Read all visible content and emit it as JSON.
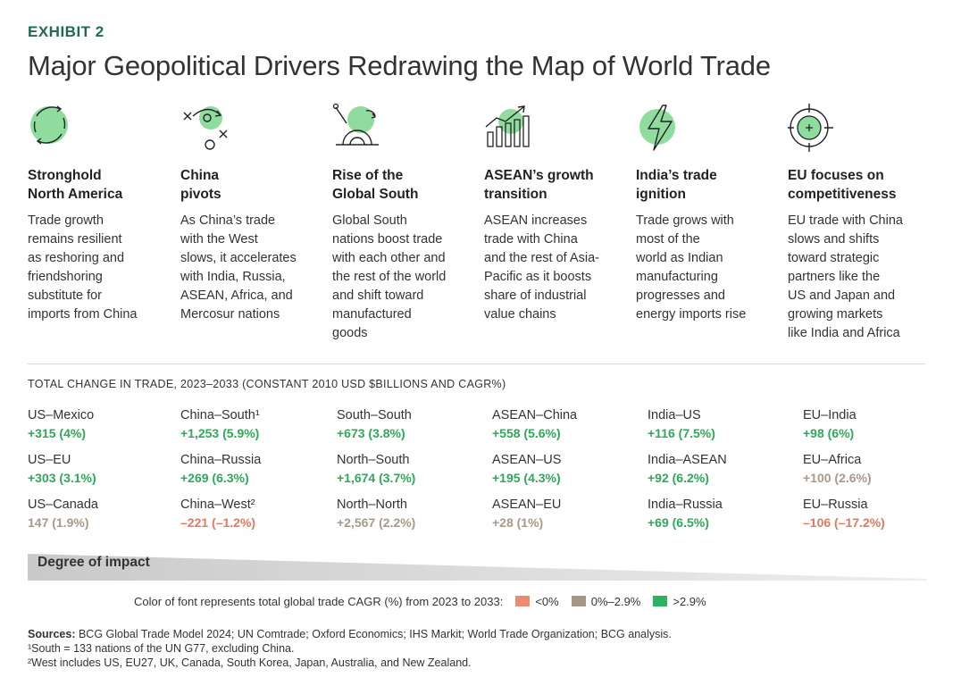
{
  "header": {
    "exhibit": "EXHIBIT 2",
    "title": "Major Geopolitical Drivers Redrawing the Map of World Trade"
  },
  "drivers": [
    {
      "icon": "cycle-circle-icon",
      "heading": "Stronghold\nNorth America",
      "description": "Trade growth\nremains resilient\nas reshoring and\nfriendshoring\nsubstitute for\nimports from China"
    },
    {
      "icon": "strategy-play-icon",
      "heading": "China\npivots",
      "description": "As China’s trade\nwith the West\nslows, it accelerates\nwith India, Russia,\nASEAN, Africa, and\nMercosur nations"
    },
    {
      "icon": "rising-sun-icon",
      "heading": "Rise of the\nGlobal South",
      "description": "Global South\nnations boost trade\nwith each other and\nthe rest of the world\nand shift toward\nmanufactured\ngoods"
    },
    {
      "icon": "growth-chart-icon",
      "heading": "ASEAN’s growth\ntransition",
      "description": "ASEAN increases\ntrade with China\nand the rest of Asia-\nPacific as it boosts\nshare of industrial\nvalue chains"
    },
    {
      "icon": "lightning-icon",
      "heading": "India’s trade\nignition",
      "description": "Trade grows with\nmost of the\nworld as Indian\nmanufacturing\nprogresses and\nenergy imports rise"
    },
    {
      "icon": "target-icon",
      "heading": "EU focuses on\ncompetitiveness",
      "description": "EU trade with China\nslows and shifts\ntoward strategic\npartners like the\nUS and Japan and\ngrowing markets\nlike India and Africa"
    }
  ],
  "colors": {
    "negative": "#e07a5f",
    "moderate": "#a8998a",
    "high": "#2ea95a",
    "swatch_negative": "#ef8a72",
    "swatch_moderate": "#a59687",
    "swatch_high": "#2bb35f",
    "icon_fill": "#8fdc9e"
  },
  "chart_data": {
    "type": "table",
    "title": "TOTAL CHANGE IN TRADE, 2023–2033 (CONSTANT 2010 USD $BILLIONS AND CAGR%)",
    "columns": [
      [
        {
          "pair": "US–Mexico",
          "value": "+315 (4%)",
          "change": 315,
          "cagr": 4,
          "category": "high"
        },
        {
          "pair": "US–EU",
          "value": "+303 (3.1%)",
          "change": 303,
          "cagr": 3.1,
          "category": "high"
        },
        {
          "pair": "US–Canada",
          "value": "147 (1.9%)",
          "change": 147,
          "cagr": 1.9,
          "category": "moderate"
        }
      ],
      [
        {
          "pair": "China–South¹",
          "value": "+1,253 (5.9%)",
          "change": 1253,
          "cagr": 5.9,
          "category": "high"
        },
        {
          "pair": "China–Russia",
          "value": "+269 (6.3%)",
          "change": 269,
          "cagr": 6.3,
          "category": "high"
        },
        {
          "pair": "China–West²",
          "value": "–221 (–1.2%)",
          "change": -221,
          "cagr": -1.2,
          "category": "negative"
        }
      ],
      [
        {
          "pair": "South–South",
          "value": "+673 (3.8%)",
          "change": 673,
          "cagr": 3.8,
          "category": "high"
        },
        {
          "pair": "North–South",
          "value": "+1,674 (3.7%)",
          "change": 1674,
          "cagr": 3.7,
          "category": "high"
        },
        {
          "pair": "North–North",
          "value": "+2,567 (2.2%)",
          "change": 2567,
          "cagr": 2.2,
          "category": "moderate"
        }
      ],
      [
        {
          "pair": "ASEAN–China",
          "value": "+558 (5.6%)",
          "change": 558,
          "cagr": 5.6,
          "category": "high"
        },
        {
          "pair": "ASEAN–US",
          "value": "+195 (4.3%)",
          "change": 195,
          "cagr": 4.3,
          "category": "high"
        },
        {
          "pair": "ASEAN–EU",
          "value": "+28 (1%)",
          "change": 28,
          "cagr": 1,
          "category": "moderate"
        }
      ],
      [
        {
          "pair": "India–US",
          "value": "+116 (7.5%)",
          "change": 116,
          "cagr": 7.5,
          "category": "high"
        },
        {
          "pair": "India–ASEAN",
          "value": "+92 (6.2%)",
          "change": 92,
          "cagr": 6.2,
          "category": "high"
        },
        {
          "pair": "India–Russia",
          "value": "+69 (6.5%)",
          "change": 69,
          "cagr": 6.5,
          "category": "high"
        }
      ],
      [
        {
          "pair": "EU–India",
          "value": "+98 (6%)",
          "change": 98,
          "cagr": 6,
          "category": "high"
        },
        {
          "pair": "EU–Africa",
          "value": "+100 (2.6%)",
          "change": 100,
          "cagr": 2.6,
          "category": "moderate"
        },
        {
          "pair": "EU–Russia",
          "value": "–106 (–17.2%)",
          "change": -106,
          "cagr": -17.2,
          "category": "negative"
        }
      ]
    ],
    "impact_label": "Degree of impact",
    "legend": {
      "caption": "Color of font represents total global trade CAGR (%) from 2023 to 2033:",
      "items": [
        {
          "label": "<0%",
          "category": "negative"
        },
        {
          "label": "0%–2.9%",
          "category": "moderate"
        },
        {
          "label": ">2.9%",
          "category": "high"
        }
      ]
    }
  },
  "footer": {
    "sources_label": "Sources:",
    "sources_text": " BCG Global Trade Model 2024; UN Comtrade; Oxford Economics; IHS Markit; World Trade Organization; BCG analysis.",
    "note1": "¹South = 133 nations of the UN G77, excluding China.",
    "note2": "²West includes US, EU27, UK, Canada, South Korea, Japan, Australia, and New Zealand."
  }
}
